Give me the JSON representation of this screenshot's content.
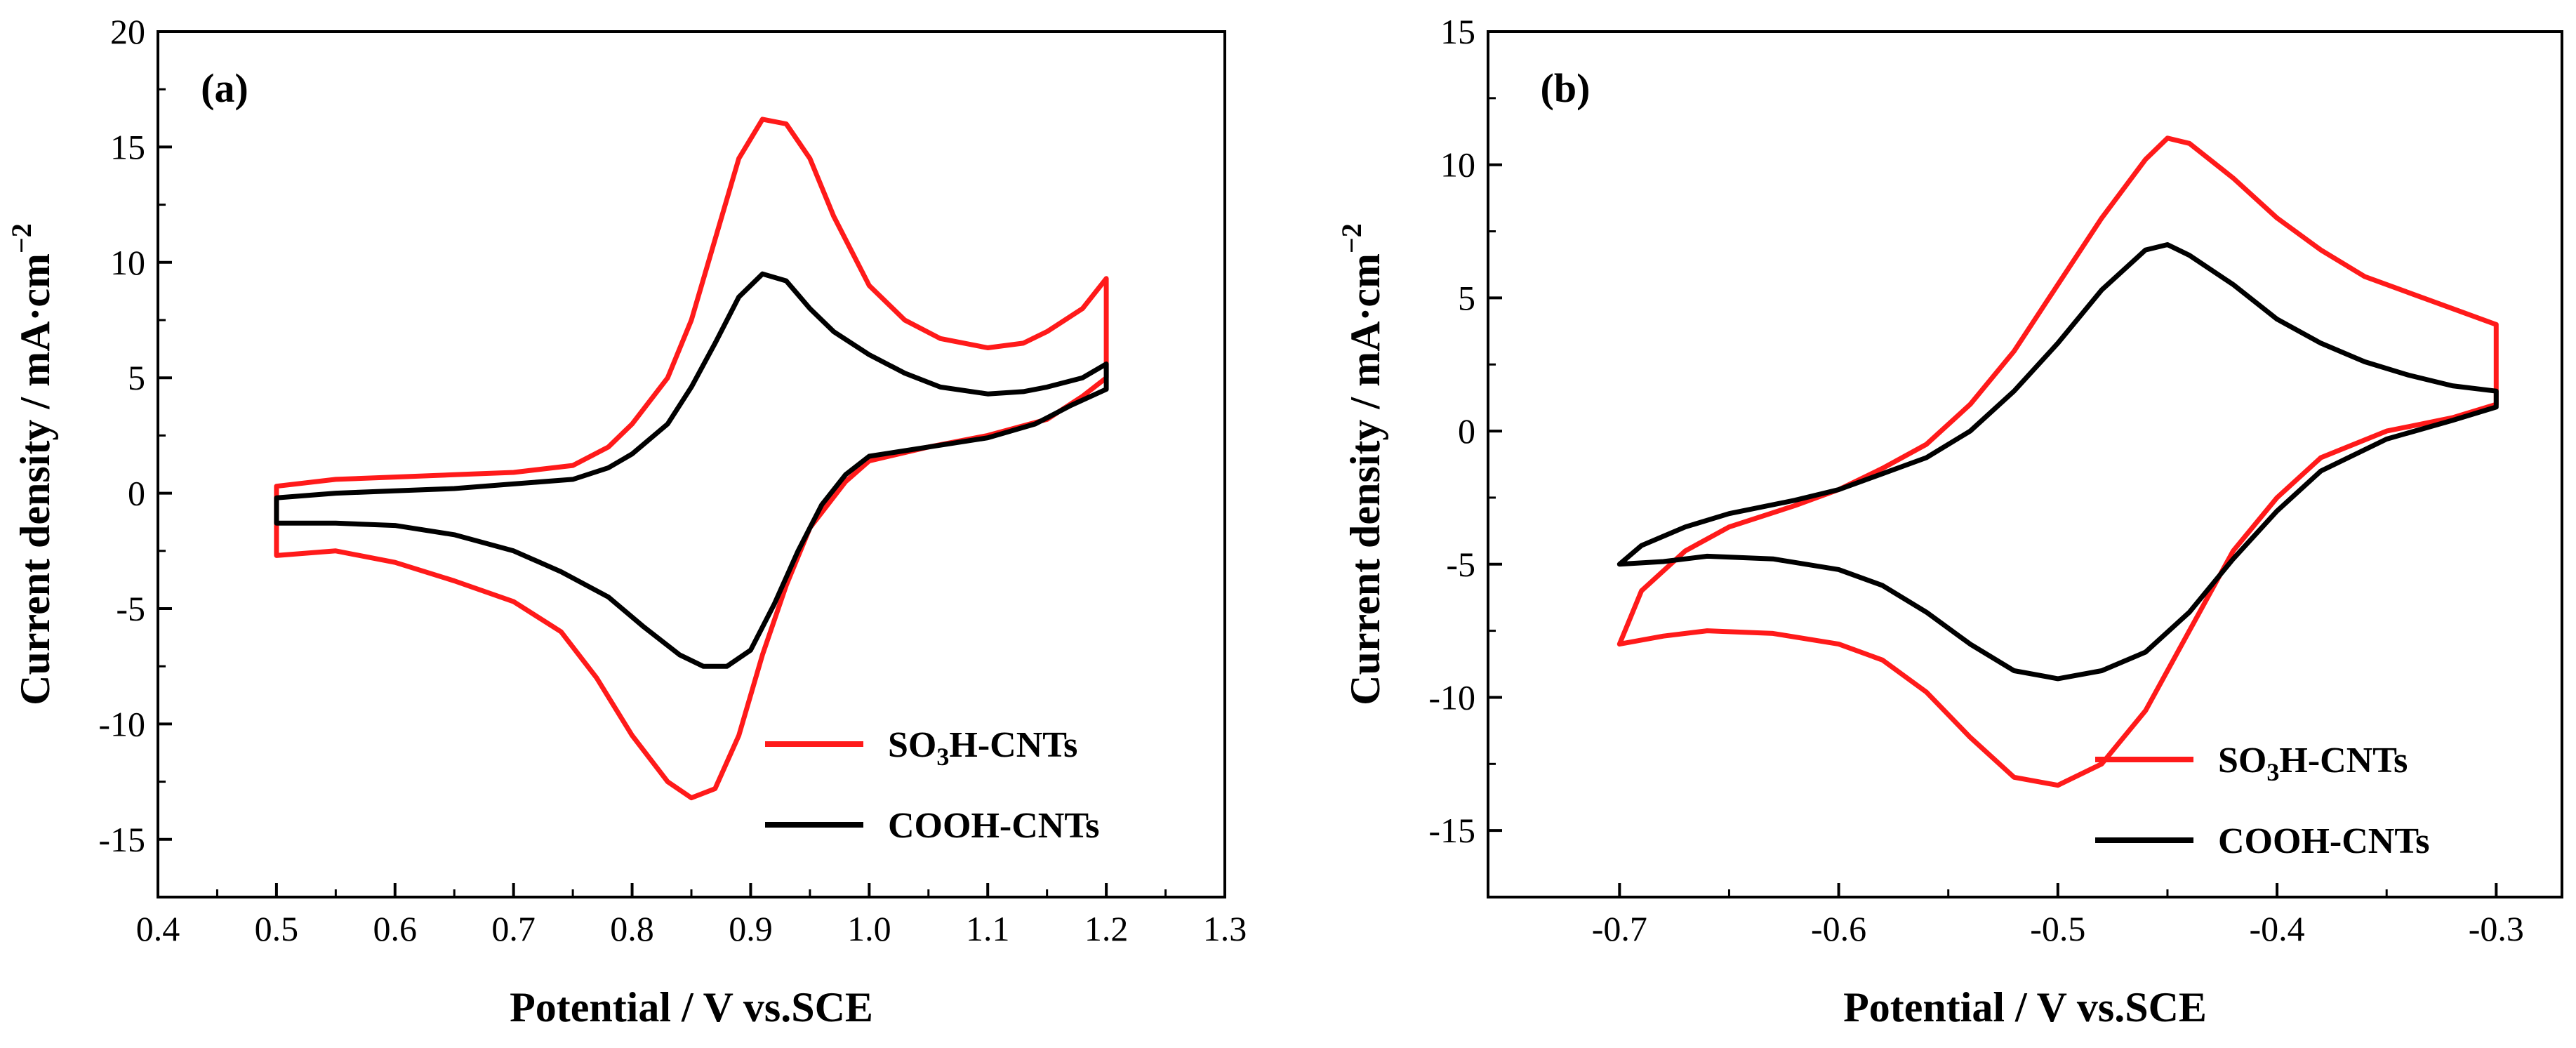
{
  "colors": {
    "so3h": "#ff1a1a",
    "cooh": "#000000"
  },
  "chart_data": [
    {
      "type": "line",
      "panel_label": "(a)",
      "xlabel": "Potential / V vs.SCE",
      "ylabel": "Current density / mA·cm",
      "ylabel_exp": "−2",
      "xlim": [
        0.4,
        1.3
      ],
      "ylim": [
        -17.5,
        20
      ],
      "x_ticks": [
        0.4,
        0.5,
        0.6,
        0.7,
        0.8,
        0.9,
        1.0,
        1.1,
        1.2,
        1.3
      ],
      "x_tick_labels": [
        "0.4",
        "0.5",
        "0.6",
        "0.7",
        "0.8",
        "0.9",
        "1.0",
        "1.1",
        "1.2",
        "1.3"
      ],
      "y_ticks": [
        -15,
        -10,
        -5,
        0,
        5,
        10,
        15,
        20
      ],
      "y_tick_labels": [
        "-15",
        "-10",
        "-5",
        "0",
        "5",
        "10",
        "15",
        "20"
      ],
      "legend": {
        "position": "bottom-right",
        "entries": [
          {
            "pre": "SO",
            "sub": "3",
            "post": "H-CNTs",
            "color": "#ff1a1a"
          },
          {
            "pre": "COOH-CNTs",
            "sub": "",
            "post": "",
            "color": "#000000"
          }
        ]
      },
      "series": [
        {
          "name": "SO3H-CNTs",
          "color": "#ff1a1a",
          "points": [
            [
              0.5,
              0.3
            ],
            [
              0.55,
              0.6
            ],
            [
              0.6,
              0.7
            ],
            [
              0.65,
              0.8
            ],
            [
              0.7,
              0.9
            ],
            [
              0.75,
              1.2
            ],
            [
              0.78,
              2.0
            ],
            [
              0.8,
              3.0
            ],
            [
              0.83,
              5.0
            ],
            [
              0.85,
              7.5
            ],
            [
              0.87,
              11.0
            ],
            [
              0.89,
              14.5
            ],
            [
              0.91,
              16.2
            ],
            [
              0.93,
              16.0
            ],
            [
              0.95,
              14.5
            ],
            [
              0.97,
              12.0
            ],
            [
              1.0,
              9.0
            ],
            [
              1.03,
              7.5
            ],
            [
              1.06,
              6.7
            ],
            [
              1.1,
              6.3
            ],
            [
              1.13,
              6.5
            ],
            [
              1.15,
              7.0
            ],
            [
              1.18,
              8.0
            ],
            [
              1.2,
              9.3
            ],
            [
              1.2,
              5.0
            ],
            [
              1.18,
              4.2
            ],
            [
              1.15,
              3.2
            ],
            [
              1.1,
              2.5
            ],
            [
              1.05,
              2.0
            ],
            [
              1.0,
              1.4
            ],
            [
              0.98,
              0.5
            ],
            [
              0.95,
              -1.5
            ],
            [
              0.93,
              -4.0
            ],
            [
              0.91,
              -7.0
            ],
            [
              0.89,
              -10.5
            ],
            [
              0.87,
              -12.8
            ],
            [
              0.85,
              -13.2
            ],
            [
              0.83,
              -12.5
            ],
            [
              0.8,
              -10.5
            ],
            [
              0.77,
              -8.0
            ],
            [
              0.74,
              -6.0
            ],
            [
              0.7,
              -4.7
            ],
            [
              0.65,
              -3.8
            ],
            [
              0.6,
              -3.0
            ],
            [
              0.55,
              -2.5
            ],
            [
              0.5,
              -2.7
            ]
          ]
        },
        {
          "name": "COOH-CNTs",
          "color": "#000000",
          "points": [
            [
              0.5,
              -0.2
            ],
            [
              0.55,
              0.0
            ],
            [
              0.6,
              0.1
            ],
            [
              0.65,
              0.2
            ],
            [
              0.7,
              0.4
            ],
            [
              0.75,
              0.6
            ],
            [
              0.78,
              1.1
            ],
            [
              0.8,
              1.7
            ],
            [
              0.83,
              3.0
            ],
            [
              0.85,
              4.6
            ],
            [
              0.87,
              6.5
            ],
            [
              0.89,
              8.5
            ],
            [
              0.91,
              9.5
            ],
            [
              0.93,
              9.2
            ],
            [
              0.95,
              8.0
            ],
            [
              0.97,
              7.0
            ],
            [
              1.0,
              6.0
            ],
            [
              1.03,
              5.2
            ],
            [
              1.06,
              4.6
            ],
            [
              1.1,
              4.3
            ],
            [
              1.13,
              4.4
            ],
            [
              1.15,
              4.6
            ],
            [
              1.18,
              5.0
            ],
            [
              1.2,
              5.6
            ],
            [
              1.2,
              4.5
            ],
            [
              1.17,
              3.8
            ],
            [
              1.14,
              3.0
            ],
            [
              1.1,
              2.4
            ],
            [
              1.05,
              2.0
            ],
            [
              1.0,
              1.6
            ],
            [
              0.98,
              0.8
            ],
            [
              0.96,
              -0.5
            ],
            [
              0.94,
              -2.5
            ],
            [
              0.92,
              -4.8
            ],
            [
              0.9,
              -6.8
            ],
            [
              0.88,
              -7.5
            ],
            [
              0.86,
              -7.5
            ],
            [
              0.84,
              -7.0
            ],
            [
              0.81,
              -5.8
            ],
            [
              0.78,
              -4.5
            ],
            [
              0.74,
              -3.4
            ],
            [
              0.7,
              -2.5
            ],
            [
              0.65,
              -1.8
            ],
            [
              0.6,
              -1.4
            ],
            [
              0.55,
              -1.3
            ],
            [
              0.5,
              -1.3
            ]
          ]
        }
      ]
    },
    {
      "type": "line",
      "panel_label": "(b)",
      "xlabel": "Potential / V vs.SCE",
      "ylabel": "Current density / mA·cm",
      "ylabel_exp": "−2",
      "xlim": [
        -0.76,
        -0.27
      ],
      "ylim": [
        -17.5,
        15
      ],
      "x_ticks": [
        -0.7,
        -0.6,
        -0.5,
        -0.4,
        -0.3
      ],
      "x_tick_labels": [
        "-0.7",
        "-0.6",
        "-0.5",
        "-0.4",
        "-0.3"
      ],
      "y_ticks": [
        -15,
        -10,
        -5,
        0,
        5,
        10,
        15
      ],
      "y_tick_labels": [
        "-15",
        "-10",
        "-5",
        "0",
        "5",
        "10",
        "15"
      ],
      "legend": {
        "position": "bottom-right",
        "entries": [
          {
            "pre": "SO",
            "sub": "3",
            "post": "H-CNTs",
            "color": "#ff1a1a"
          },
          {
            "pre": "COOH-CNTs",
            "sub": "",
            "post": "",
            "color": "#000000"
          }
        ]
      },
      "series": [
        {
          "name": "SO3H-CNTs",
          "color": "#ff1a1a",
          "points": [
            [
              -0.7,
              -8.0
            ],
            [
              -0.69,
              -6.0
            ],
            [
              -0.67,
              -4.5
            ],
            [
              -0.65,
              -3.6
            ],
            [
              -0.62,
              -2.8
            ],
            [
              -0.6,
              -2.2
            ],
            [
              -0.58,
              -1.4
            ],
            [
              -0.56,
              -0.5
            ],
            [
              -0.54,
              1.0
            ],
            [
              -0.52,
              3.0
            ],
            [
              -0.5,
              5.5
            ],
            [
              -0.48,
              8.0
            ],
            [
              -0.46,
              10.2
            ],
            [
              -0.45,
              11.0
            ],
            [
              -0.44,
              10.8
            ],
            [
              -0.42,
              9.5
            ],
            [
              -0.4,
              8.0
            ],
            [
              -0.38,
              6.8
            ],
            [
              -0.36,
              5.8
            ],
            [
              -0.34,
              5.2
            ],
            [
              -0.32,
              4.6
            ],
            [
              -0.3,
              4.0
            ],
            [
              -0.3,
              1.0
            ],
            [
              -0.32,
              0.5
            ],
            [
              -0.35,
              0.0
            ],
            [
              -0.38,
              -1.0
            ],
            [
              -0.4,
              -2.5
            ],
            [
              -0.42,
              -4.5
            ],
            [
              -0.44,
              -7.5
            ],
            [
              -0.46,
              -10.5
            ],
            [
              -0.48,
              -12.5
            ],
            [
              -0.5,
              -13.3
            ],
            [
              -0.52,
              -13.0
            ],
            [
              -0.54,
              -11.5
            ],
            [
              -0.56,
              -9.8
            ],
            [
              -0.58,
              -8.6
            ],
            [
              -0.6,
              -8.0
            ],
            [
              -0.63,
              -7.6
            ],
            [
              -0.66,
              -7.5
            ],
            [
              -0.68,
              -7.7
            ],
            [
              -0.7,
              -8.0
            ]
          ]
        },
        {
          "name": "COOH-CNTs",
          "color": "#000000",
          "points": [
            [
              -0.7,
              -5.0
            ],
            [
              -0.69,
              -4.3
            ],
            [
              -0.67,
              -3.6
            ],
            [
              -0.65,
              -3.1
            ],
            [
              -0.62,
              -2.6
            ],
            [
              -0.6,
              -2.2
            ],
            [
              -0.58,
              -1.6
            ],
            [
              -0.56,
              -1.0
            ],
            [
              -0.54,
              0.0
            ],
            [
              -0.52,
              1.5
            ],
            [
              -0.5,
              3.3
            ],
            [
              -0.48,
              5.3
            ],
            [
              -0.46,
              6.8
            ],
            [
              -0.45,
              7.0
            ],
            [
              -0.44,
              6.6
            ],
            [
              -0.42,
              5.5
            ],
            [
              -0.4,
              4.2
            ],
            [
              -0.38,
              3.3
            ],
            [
              -0.36,
              2.6
            ],
            [
              -0.34,
              2.1
            ],
            [
              -0.32,
              1.7
            ],
            [
              -0.3,
              1.5
            ],
            [
              -0.3,
              0.9
            ],
            [
              -0.32,
              0.4
            ],
            [
              -0.35,
              -0.3
            ],
            [
              -0.38,
              -1.5
            ],
            [
              -0.4,
              -3.0
            ],
            [
              -0.42,
              -4.8
            ],
            [
              -0.44,
              -6.8
            ],
            [
              -0.46,
              -8.3
            ],
            [
              -0.48,
              -9.0
            ],
            [
              -0.5,
              -9.3
            ],
            [
              -0.52,
              -9.0
            ],
            [
              -0.54,
              -8.0
            ],
            [
              -0.56,
              -6.8
            ],
            [
              -0.58,
              -5.8
            ],
            [
              -0.6,
              -5.2
            ],
            [
              -0.63,
              -4.8
            ],
            [
              -0.66,
              -4.7
            ],
            [
              -0.68,
              -4.9
            ],
            [
              -0.7,
              -5.0
            ]
          ]
        }
      ]
    }
  ]
}
